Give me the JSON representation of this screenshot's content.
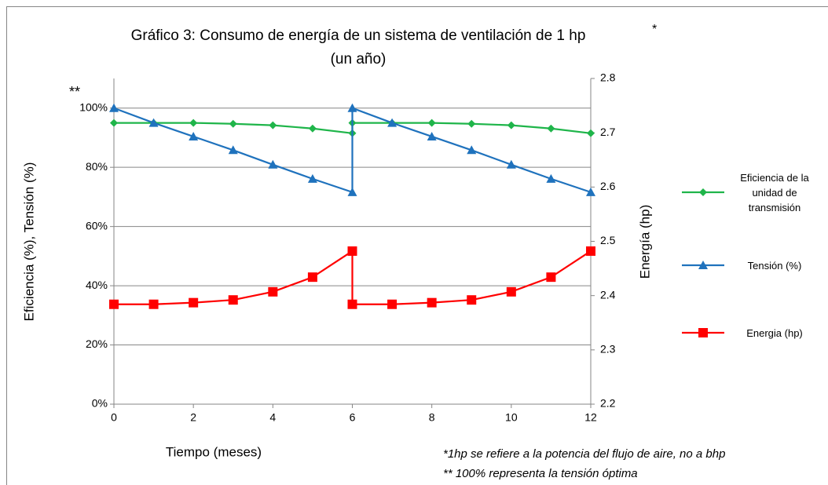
{
  "chart_data": {
    "type": "line",
    "title": "Gráfico 3: Consumo de energía de un sistema de ventilación de 1 hp",
    "title_mark": "*",
    "subtitle": "(un año)",
    "xlabel": "Tiempo (meses)",
    "ylabel": "Eficiencia (%), Tensión (%)",
    "y2label": "Energía (hp)",
    "annotations": [
      "**",
      "*1hp se refiere a la potencia del flujo de aire, no a bhp",
      "** 100% representa la tensión óptima"
    ],
    "x": [
      0,
      1,
      2,
      3,
      4,
      5,
      6,
      6,
      7,
      8,
      9,
      10,
      11,
      12
    ],
    "xlim": [
      0,
      12
    ],
    "xticks": [
      0,
      2,
      4,
      6,
      8,
      10,
      12
    ],
    "ylim": [
      0,
      110
    ],
    "yticks": [
      {
        "value": 0,
        "label": "0%"
      },
      {
        "value": 20,
        "label": "20%"
      },
      {
        "value": 40,
        "label": "40%"
      },
      {
        "value": 60,
        "label": "60%"
      },
      {
        "value": 80,
        "label": "80%"
      },
      {
        "value": 100,
        "label": "100%"
      }
    ],
    "y2lim": [
      2.2,
      2.8
    ],
    "y2ticks": [
      2.2,
      2.3,
      2.4,
      2.5,
      2.6,
      2.7,
      2.8
    ],
    "grid": true,
    "legend": "right",
    "series": [
      {
        "name": "Eficiencia de la unidad de transmisión",
        "color": "#1fb54a",
        "marker": "diamond",
        "values": [
          95,
          95,
          95,
          94.7,
          94.2,
          93.1,
          91.5,
          95,
          95,
          95,
          94.7,
          94.2,
          93.1,
          91.5
        ]
      },
      {
        "name": "Tensión (%)",
        "color": "#1f72bd",
        "marker": "triangle",
        "values": [
          100,
          95,
          90.4,
          85.8,
          80.9,
          76.1,
          71.6,
          100,
          95,
          90.4,
          85.8,
          80.9,
          76.1,
          71.6
        ]
      },
      {
        "name": "Energia (hp)",
        "color": "#ff0000",
        "marker": "square",
        "axis": "y2",
        "values": [
          2.384,
          2.384,
          2.387,
          2.392,
          2.407,
          2.434,
          2.482,
          2.384,
          2.384,
          2.387,
          2.392,
          2.407,
          2.434,
          2.482
        ]
      }
    ]
  }
}
